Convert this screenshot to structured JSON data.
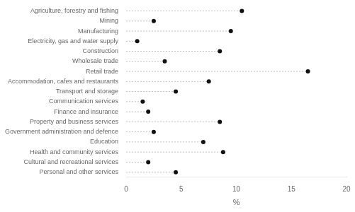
{
  "chart_data": {
    "type": "lollipop",
    "orientation": "horizontal",
    "categories": [
      "Agriculture, forestry and fishing",
      "Mining",
      "Manufacturing",
      "Electricity, gas and water supply",
      "Construction",
      "Wholesale trade",
      "Retail trade",
      "Accommodation, cafes and restaurants",
      "Transport and storage",
      "Communication services",
      "Finance and insurance",
      "Property and business services",
      "Government administration and defence",
      "Education",
      "Health and community services",
      "Cultural and recreational services",
      "Personal and other services"
    ],
    "values": [
      10.5,
      2.5,
      9.5,
      1.0,
      8.5,
      3.5,
      16.5,
      7.5,
      4.5,
      1.5,
      2.0,
      8.5,
      2.5,
      7.0,
      8.8,
      2.0,
      4.5
    ],
    "xlabel": "%",
    "xlim": [
      0,
      20
    ],
    "xticks": [
      0,
      5,
      10,
      15,
      20
    ],
    "color": "#111111",
    "marker": "circle",
    "line_style": "dashed",
    "grid": false
  }
}
